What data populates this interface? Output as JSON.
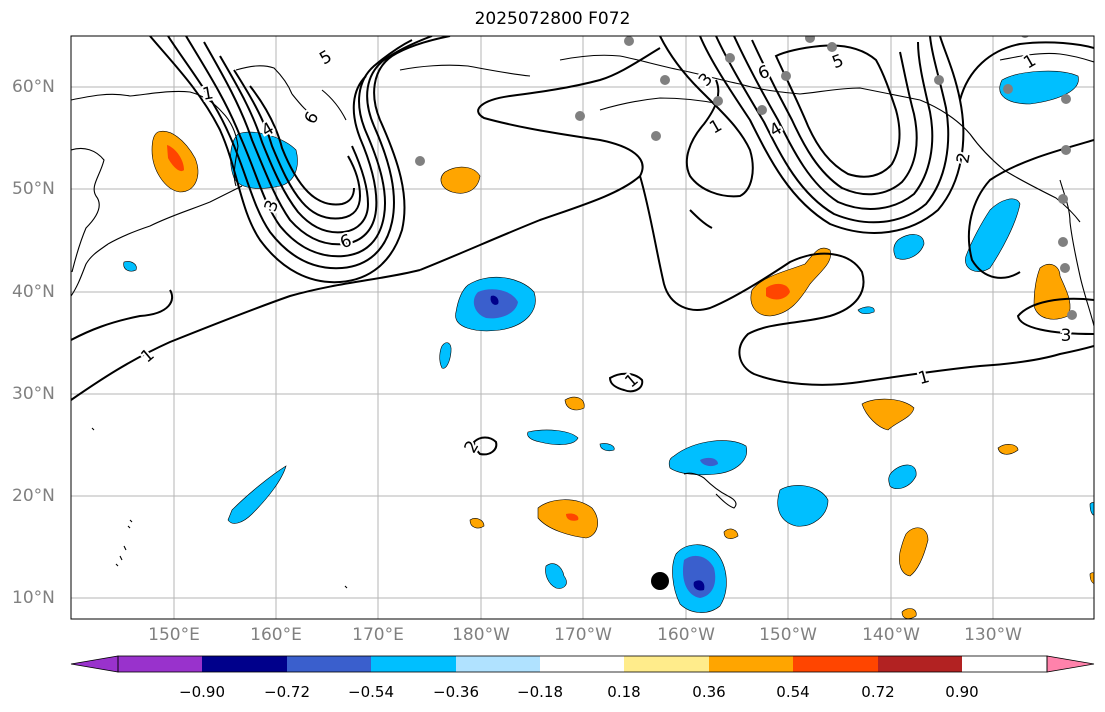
{
  "title": "2025072800 F072",
  "map": {
    "lat_labels": [
      "60°N",
      "50°N",
      "40°N",
      "30°N",
      "20°N",
      "10°N"
    ],
    "lon_labels": [
      "150°E",
      "160°E",
      "170°E",
      "180°W",
      "170°W",
      "160°W",
      "150°W",
      "140°W",
      "130°W"
    ],
    "contour_labels": [
      "5",
      "6",
      "4",
      "3",
      "6",
      "5",
      "6",
      "4",
      "3",
      "1",
      "2",
      "1",
      "1",
      "1",
      "1",
      "3",
      "1",
      "2"
    ],
    "grid": true
  },
  "colorbar": {
    "ticks": [
      "−0.90",
      "−0.72",
      "−0.54",
      "−0.36",
      "−0.18",
      "0.18",
      "0.36",
      "0.54",
      "0.72",
      "0.90"
    ],
    "colors": [
      "#9932cc",
      "#00008b",
      "#3a5fcd",
      "#00bfff",
      "#b0e2ff",
      "#ffffff",
      "#ffec8b",
      "#ffa500",
      "#ff4500",
      "#b22222",
      "#ff82ab"
    ]
  },
  "palette": {
    "cool_1": "#b0e2ff",
    "cool_2": "#00bfff",
    "cool_3": "#3a5fcd",
    "cool_4": "#00008b",
    "warm_1": "#ffec8b",
    "warm_2": "#ffa500",
    "warm_3": "#ff4500",
    "warm_4": "#b22222",
    "station": "#808080"
  }
}
